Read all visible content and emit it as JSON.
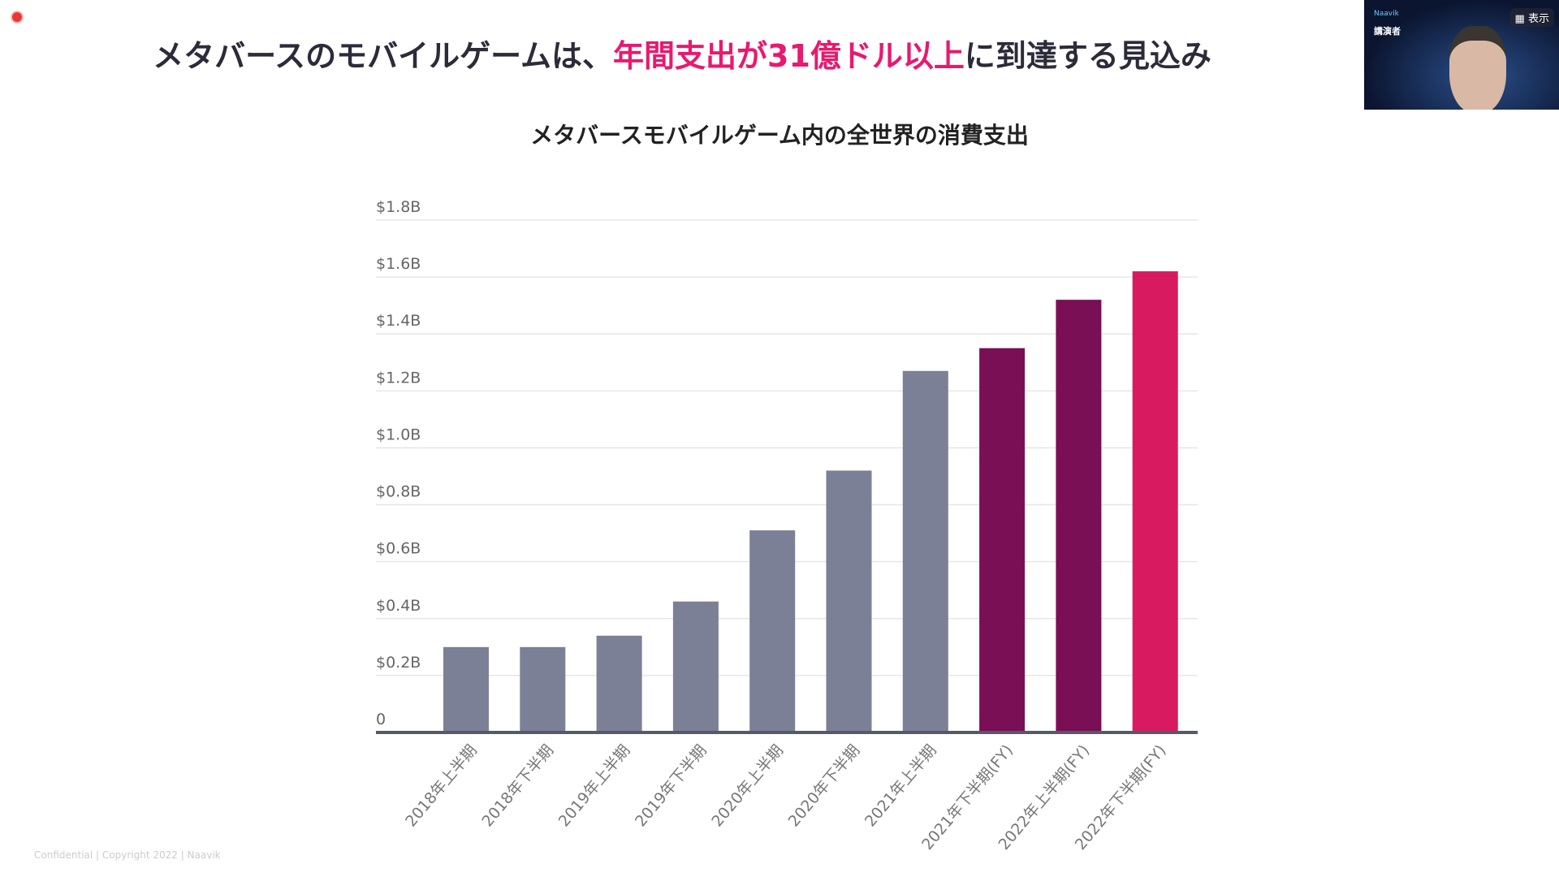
{
  "slide": {
    "title_pre": "メタバースのモバイルゲームは、",
    "title_highlight": "年間支出が31億ドル以上",
    "title_post": "に到達する見込み",
    "footer": "Confidential | Copyright 2022 | Naavik"
  },
  "video": {
    "label": "Naavik",
    "name": "講演者",
    "show_button": "表示",
    "show_icon": "film-icon"
  },
  "colors": {
    "actual": "#7b8096",
    "forecast_dark": "#7a0f55",
    "forecast_bright": "#d81b60",
    "highlight": "#e8196e"
  },
  "chart_data": {
    "type": "bar",
    "title": "メタバースモバイルゲーム内の全世界の消費支出",
    "xlabel": "",
    "ylabel": "",
    "ylim": [
      0,
      1.8
    ],
    "yticks": [
      0,
      0.2,
      0.4,
      0.6,
      0.8,
      1.0,
      1.2,
      1.4,
      1.6,
      1.8
    ],
    "ytick_labels": [
      "0",
      "$0.2B",
      "$0.4B",
      "$0.6B",
      "$0.8B",
      "$1.0B",
      "$1.2B",
      "$1.4B",
      "$1.6B",
      "$1.8B"
    ],
    "grid": true,
    "categories": [
      "2018年上半期",
      "2018年下半期",
      "2019年上半期",
      "2019年下半期",
      "2020年上半期",
      "2020年下半期",
      "2021年上半期",
      "2021年下半期(FY)",
      "2022年上半期(FY)",
      "2022年下半期(FY)"
    ],
    "values": [
      0.3,
      0.3,
      0.34,
      0.46,
      0.71,
      0.92,
      1.27,
      1.35,
      1.52,
      1.62
    ],
    "bar_color_keys": [
      "actual",
      "actual",
      "actual",
      "actual",
      "actual",
      "actual",
      "actual",
      "forecast_dark",
      "forecast_dark",
      "forecast_bright"
    ]
  }
}
